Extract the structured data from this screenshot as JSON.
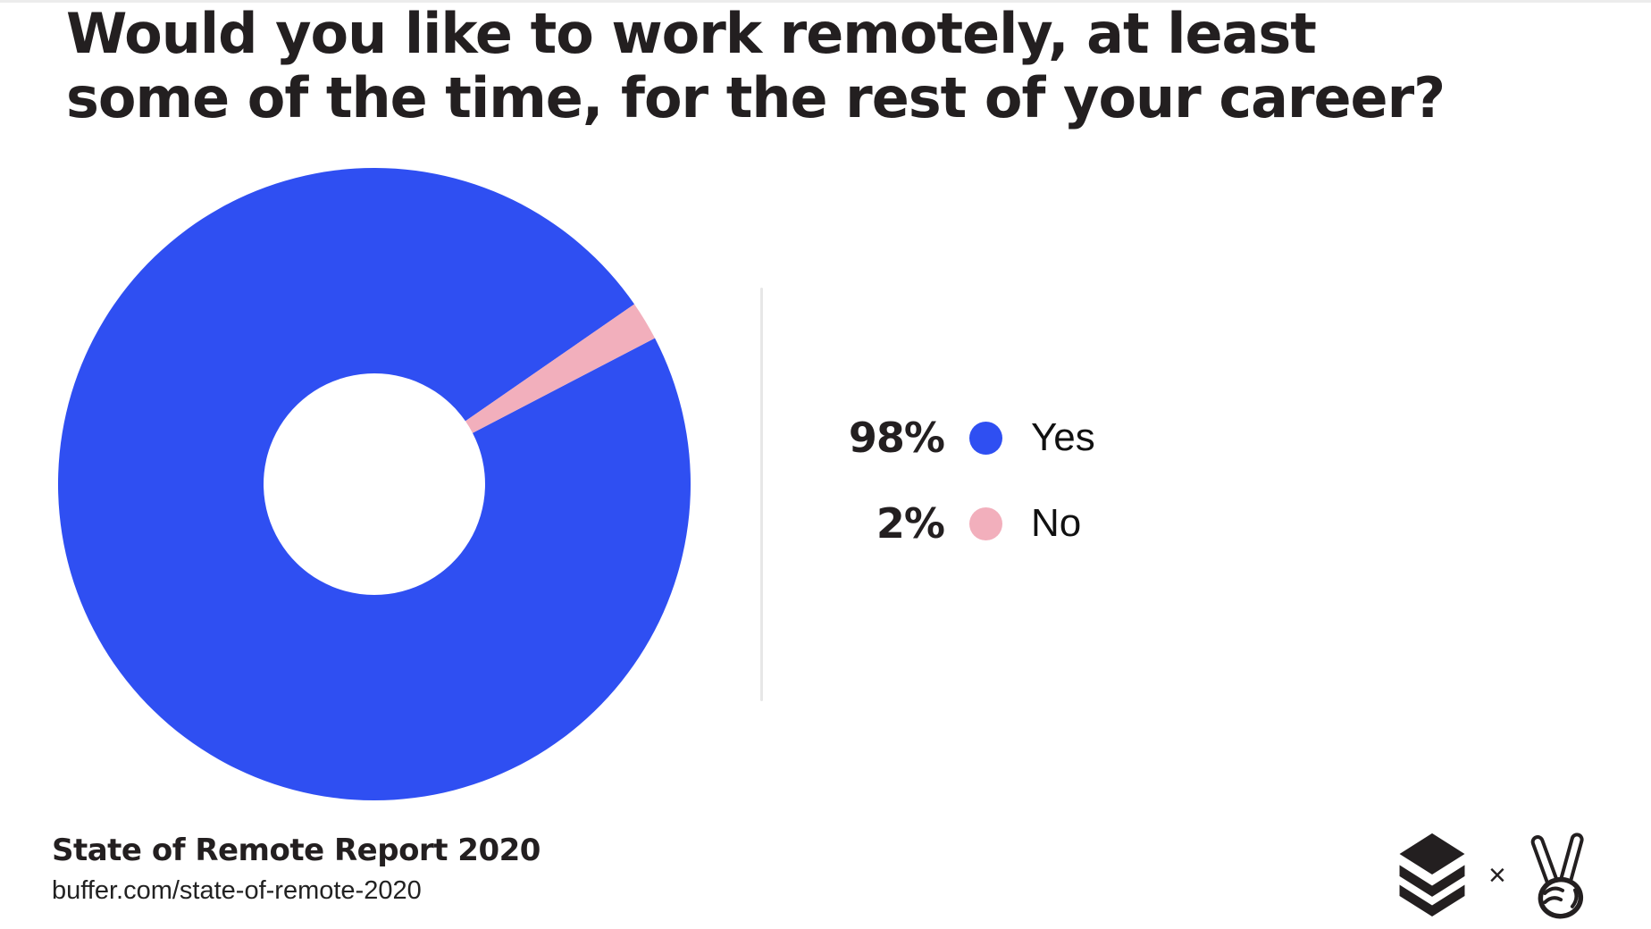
{
  "page": {
    "background": "#ffffff"
  },
  "title": {
    "text": "Would you like to work remotely, at least some of the time, for the rest of your career?",
    "line1": "Would you like to work remotely, at least",
    "line2": "some of the time, for the rest of your career?"
  },
  "chart_data": {
    "type": "pie",
    "subtype": "donut",
    "title": "Would you like to work remotely, at least some of the time, for the rest of your career?",
    "categories": [
      "Yes",
      "No"
    ],
    "values": [
      98,
      2
    ],
    "unit": "percent",
    "colors": [
      "#2f4ff2",
      "#f2afbc"
    ],
    "rotation_deg": -27.5,
    "inner_radius_ratio": 0.35,
    "legend_position": "right",
    "legend": [
      {
        "value_label": "98%",
        "label": "Yes",
        "color": "#2f4ff2"
      },
      {
        "value_label": "2%",
        "label": "No",
        "color": "#f2afbc"
      }
    ]
  },
  "footer": {
    "source_title": "State of Remote Report 2020",
    "source_url": "buffer.com/state-of-remote-2020"
  },
  "branding": {
    "left_logo_name": "buffer-layers-logo",
    "separator": "×",
    "right_logo_name": "peace-hand-logo"
  },
  "ui_colors": {
    "text": "#231f20",
    "divider": "#e7e7e7",
    "accent_blue": "#2f4ff2",
    "accent_pink": "#f2afbc"
  }
}
